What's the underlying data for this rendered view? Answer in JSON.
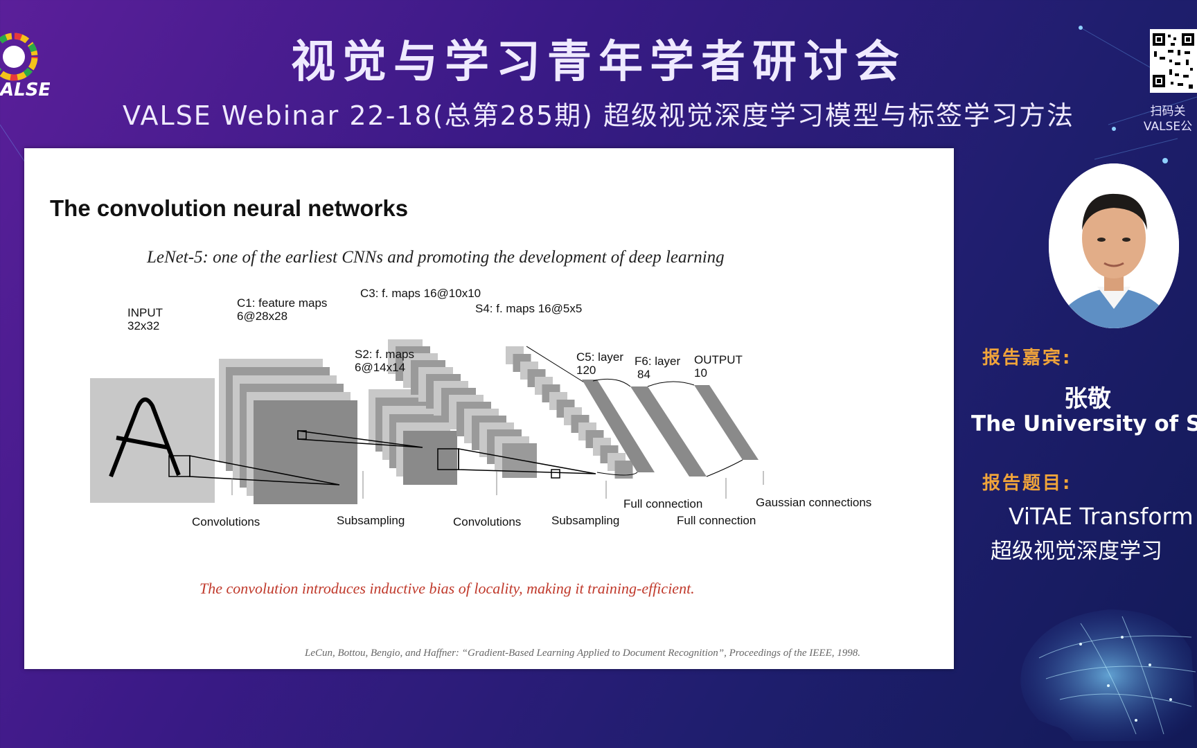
{
  "header": {
    "title": "视觉与学习青年学者研讨会",
    "subtitle": "VALSE Webinar 22-18(总第285期) 超级视觉深度学习模型与标签学习方法"
  },
  "logo": {
    "text": "ALSE",
    "icon": "valse-logo-icon"
  },
  "qr": {
    "caption_line1": "扫码关",
    "caption_line2": "VALSE公"
  },
  "slide": {
    "title": "The convolution neural networks",
    "subtitle": "LeNet-5: one of the earliest CNNs and promoting the development of deep learning",
    "note": "The convolution introduces inductive bias of locality, making it training-efficient.",
    "reference": "LeCun, Bottou, Bengio, and Haffner: “Gradient-Based Learning Applied to Document Recognition”, Proceedings of the IEEE, 1998.",
    "diagram": {
      "labels": {
        "input": [
          "INPUT",
          "32x32"
        ],
        "c1": [
          "C1: feature maps",
          "6@28x28"
        ],
        "s2": [
          "S2: f. maps",
          "6@14x14"
        ],
        "c3": [
          "C3: f. maps 16@10x10"
        ],
        "s4": [
          "S4: f. maps 16@5x5"
        ],
        "c5": [
          "C5: layer",
          "120"
        ],
        "f6": [
          "F6: layer",
          "84"
        ],
        "output": [
          "OUTPUT",
          "10"
        ]
      },
      "ops": {
        "conv1": "Convolutions",
        "sub1": "Subsampling",
        "conv2": "Convolutions",
        "sub2": "Subsampling",
        "full1": "Full connection",
        "full2": "Full connection",
        "gauss": "Gaussian connections"
      }
    }
  },
  "speaker": {
    "label": "报告嘉宾:",
    "name": "张敬",
    "affiliation": "The University of Syc"
  },
  "topic": {
    "label": "报告题目:",
    "line1": "ViTAE Transform",
    "line2": "超级视觉深度学习"
  }
}
